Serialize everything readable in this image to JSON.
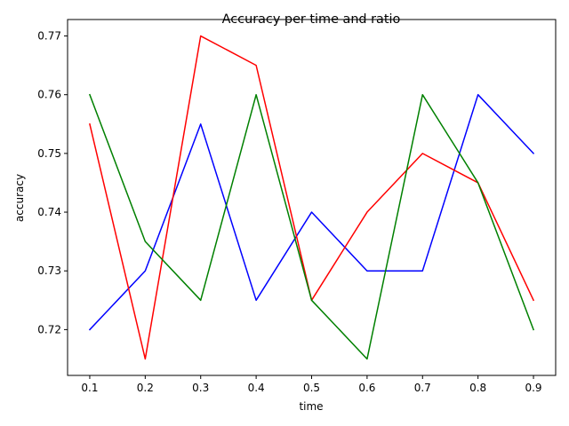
{
  "chart_data": {
    "type": "line",
    "title": "Accuracy per time and ratio",
    "xlabel": "time",
    "ylabel": "accuracy",
    "x": [
      0.1,
      0.2,
      0.3,
      0.4,
      0.5,
      0.6,
      0.7,
      0.8,
      0.9
    ],
    "xticks": [
      "0.1",
      "0.2",
      "0.3",
      "0.4",
      "0.5",
      "0.6",
      "0.7",
      "0.8",
      "0.9"
    ],
    "yticks": [
      "0.72",
      "0.73",
      "0.74",
      "0.75",
      "0.76",
      "0.77"
    ],
    "xlim": [
      0.06,
      0.94
    ],
    "ylim": [
      0.7122,
      0.7728
    ],
    "grid": false,
    "legend": false,
    "series": [
      {
        "name": "blue",
        "color": "#0000ff",
        "values": [
          0.72,
          0.73,
          0.755,
          0.725,
          0.74,
          0.73,
          0.73,
          0.76,
          0.75
        ]
      },
      {
        "name": "red",
        "color": "#ff0000",
        "values": [
          0.755,
          0.715,
          0.77,
          0.765,
          0.725,
          0.74,
          0.75,
          0.745,
          0.725
        ]
      },
      {
        "name": "green",
        "color": "#008000",
        "values": [
          0.76,
          0.735,
          0.725,
          0.76,
          0.725,
          0.715,
          0.76,
          0.745,
          0.72
        ]
      }
    ]
  }
}
